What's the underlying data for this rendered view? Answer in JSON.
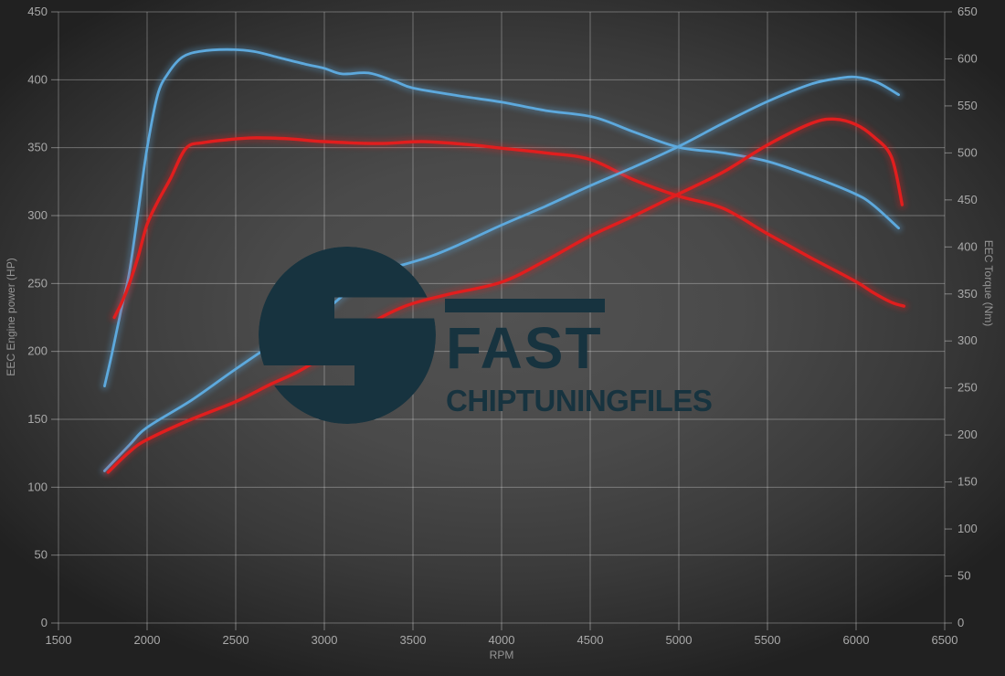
{
  "axes": {
    "x": {
      "title": "RPM",
      "min": 1500,
      "max": 6500,
      "step": 500,
      "tick_labels": [
        "1500",
        "2000",
        "2500",
        "3000",
        "3500",
        "4000",
        "4500",
        "5000",
        "5500",
        "6000",
        "6500"
      ]
    },
    "y_left": {
      "title": "EEC Engine power (HP)",
      "min": 0,
      "max": 450,
      "step": 50,
      "tick_labels": [
        "0",
        "50",
        "100",
        "150",
        "200",
        "250",
        "300",
        "350",
        "400",
        "450"
      ]
    },
    "y_right": {
      "title": "EEC Torque (Nm)",
      "min": 0,
      "max": 650,
      "step": 50,
      "tick_labels": [
        "0",
        "50",
        "100",
        "150",
        "200",
        "250",
        "300",
        "350",
        "400",
        "450",
        "500",
        "550",
        "600",
        "650"
      ]
    }
  },
  "watermark": {
    "line1": "FAST",
    "line2": "CHIPTUNINGFILES",
    "color": "#17333f"
  },
  "colors": {
    "blue": "#5da9dd",
    "red": "#e11e1e",
    "grid": "rgba(255,255,255,0.30)",
    "tick": "rgba(255,255,255,0.38)",
    "tick_label": "#a9a9a9",
    "axis_title": "#959595"
  },
  "chart_data": {
    "type": "line",
    "title": "",
    "xlabel": "RPM",
    "ylabel_left": "EEC Engine power (HP)",
    "ylabel_right": "EEC Torque (Nm)",
    "x_range": [
      1500,
      6500
    ],
    "y_left_range": [
      0,
      450
    ],
    "y_right_range": [
      0,
      650
    ],
    "grid": true,
    "legend": "none",
    "series": [
      {
        "id": "blue_torque",
        "axis": "right",
        "unit": "Nm",
        "color_key": "blue",
        "width": 2.8,
        "points": [
          [
            1760,
            252
          ],
          [
            1800,
            285
          ],
          [
            1850,
            330
          ],
          [
            1900,
            373
          ],
          [
            1950,
            438
          ],
          [
            2000,
            505
          ],
          [
            2060,
            562
          ],
          [
            2120,
            585
          ],
          [
            2200,
            602
          ],
          [
            2300,
            608
          ],
          [
            2450,
            610
          ],
          [
            2600,
            608
          ],
          [
            2750,
            601
          ],
          [
            2900,
            594
          ],
          [
            3000,
            590
          ],
          [
            3100,
            584
          ],
          [
            3250,
            585
          ],
          [
            3400,
            576
          ],
          [
            3500,
            569
          ],
          [
            3750,
            561
          ],
          [
            4000,
            554
          ],
          [
            4250,
            545
          ],
          [
            4520,
            538
          ],
          [
            4750,
            522
          ],
          [
            5000,
            506
          ],
          [
            5250,
            500
          ],
          [
            5500,
            491
          ],
          [
            5750,
            475
          ],
          [
            6000,
            456
          ],
          [
            6100,
            444
          ],
          [
            6240,
            420
          ]
        ]
      },
      {
        "id": "red_torque",
        "axis": "right",
        "unit": "Nm",
        "color_key": "red",
        "width": 3.4,
        "points": [
          [
            1815,
            325
          ],
          [
            1860,
            342
          ],
          [
            1900,
            361
          ],
          [
            1950,
            390
          ],
          [
            2000,
            424
          ],
          [
            2060,
            448
          ],
          [
            2130,
            472
          ],
          [
            2220,
            505
          ],
          [
            2320,
            511
          ],
          [
            2450,
            514
          ],
          [
            2600,
            516
          ],
          [
            2800,
            515
          ],
          [
            3000,
            512
          ],
          [
            3300,
            510
          ],
          [
            3550,
            512
          ],
          [
            3800,
            509
          ],
          [
            4000,
            505
          ],
          [
            4250,
            500
          ],
          [
            4500,
            493
          ],
          [
            4750,
            471
          ],
          [
            5000,
            454
          ],
          [
            5250,
            441
          ],
          [
            5500,
            414
          ],
          [
            5750,
            388
          ],
          [
            6000,
            363
          ],
          [
            6100,
            351
          ],
          [
            6200,
            341
          ],
          [
            6270,
            337
          ]
        ]
      },
      {
        "id": "blue_power",
        "axis": "left",
        "unit": "HP",
        "color_key": "blue",
        "width": 2.8,
        "points": [
          [
            1760,
            112
          ],
          [
            1900,
            131
          ],
          [
            2000,
            144
          ],
          [
            2250,
            164
          ],
          [
            2500,
            187
          ],
          [
            2750,
            209
          ],
          [
            3000,
            230
          ],
          [
            3150,
            246
          ],
          [
            3300,
            259
          ],
          [
            3450,
            264
          ],
          [
            3600,
            270
          ],
          [
            3750,
            278
          ],
          [
            4000,
            293
          ],
          [
            4250,
            307
          ],
          [
            4500,
            322
          ],
          [
            4750,
            336
          ],
          [
            5000,
            351
          ],
          [
            5250,
            368
          ],
          [
            5500,
            384
          ],
          [
            5750,
            397
          ],
          [
            5900,
            401
          ],
          [
            6000,
            402
          ],
          [
            6120,
            398
          ],
          [
            6240,
            389
          ]
        ]
      },
      {
        "id": "red_power",
        "axis": "left",
        "unit": "HP",
        "color_key": "red",
        "width": 3.4,
        "points": [
          [
            1780,
            111
          ],
          [
            1900,
            126
          ],
          [
            2000,
            135
          ],
          [
            2250,
            150
          ],
          [
            2500,
            163
          ],
          [
            2700,
            176
          ],
          [
            2850,
            185
          ],
          [
            3000,
            197
          ],
          [
            3200,
            216
          ],
          [
            3450,
            233
          ],
          [
            3700,
            242
          ],
          [
            4000,
            251
          ],
          [
            4250,
            267
          ],
          [
            4500,
            285
          ],
          [
            4750,
            300
          ],
          [
            5000,
            316
          ],
          [
            5250,
            332
          ],
          [
            5500,
            352
          ],
          [
            5750,
            368
          ],
          [
            5880,
            371
          ],
          [
            6000,
            367
          ],
          [
            6100,
            358
          ],
          [
            6200,
            343
          ],
          [
            6260,
            308
          ]
        ]
      }
    ]
  }
}
